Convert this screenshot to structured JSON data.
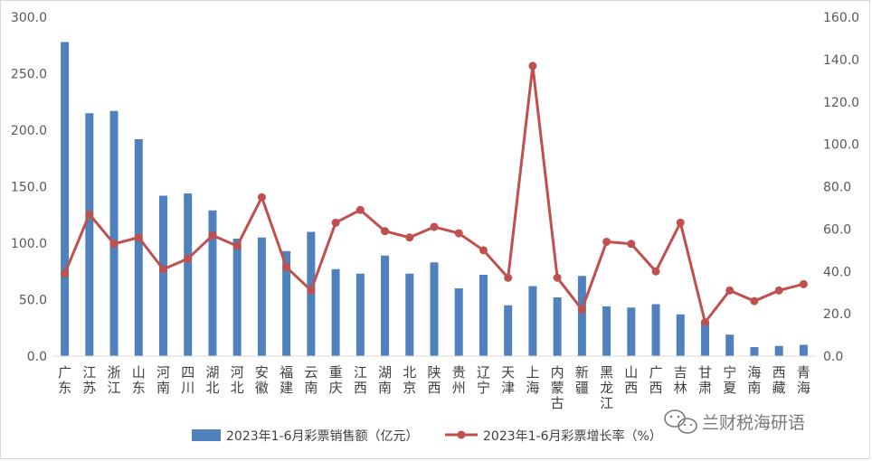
{
  "chart_data": {
    "type": "bar",
    "categories": [
      "广东",
      "江苏",
      "浙江",
      "山东",
      "河南",
      "四川",
      "湖北",
      "河北",
      "安徽",
      "福建",
      "云南",
      "重庆",
      "江西",
      "湖南",
      "北京",
      "陕西",
      "贵州",
      "辽宁",
      "天津",
      "上海",
      "内蒙古",
      "新疆",
      "黑龙江",
      "山西",
      "广西",
      "吉林",
      "甘肃",
      "宁夏",
      "海南",
      "西藏",
      "青海"
    ],
    "series": [
      {
        "name": "2023年1-6月彩票销售额（亿元）",
        "type": "bar",
        "axis": "left",
        "color": "#4f81bd",
        "values": [
          278,
          215,
          217,
          192,
          142,
          144,
          129,
          104,
          105,
          93,
          110,
          77,
          73,
          89,
          73,
          83,
          60,
          72,
          45,
          62,
          52,
          71,
          44,
          43,
          46,
          37,
          31,
          19,
          8,
          9,
          10
        ]
      },
      {
        "name": "2023年1-6月彩票增长率（%）",
        "type": "line",
        "axis": "right",
        "color": "#c0504d",
        "values": [
          39,
          67,
          53,
          56,
          41,
          46,
          57,
          52,
          75,
          42,
          31,
          63,
          69,
          59,
          56,
          61,
          58,
          50,
          37,
          137,
          37,
          22,
          54,
          53,
          40,
          63,
          16,
          31,
          26,
          31,
          34
        ]
      }
    ],
    "y_left": {
      "min": 0,
      "max": 300,
      "step": 50,
      "ticks": [
        "0.0",
        "50.0",
        "100.0",
        "150.0",
        "200.0",
        "250.0",
        "300.0"
      ]
    },
    "y_right": {
      "min": 0,
      "max": 160,
      "step": 20,
      "ticks": [
        "0.0",
        "20.0",
        "40.0",
        "60.0",
        "80.0",
        "100.0",
        "120.0",
        "140.0",
        "160.0"
      ]
    },
    "grid": false,
    "legend_position": "bottom"
  },
  "watermark": {
    "text": "兰财税海研语",
    "icon": "wechat-icon"
  }
}
